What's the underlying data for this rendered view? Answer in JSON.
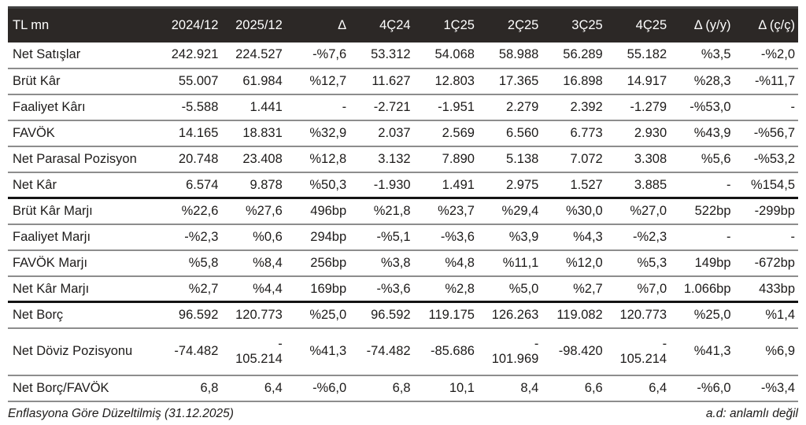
{
  "colors": {
    "header_bg": "#2c2826",
    "header_text": "#ffffff",
    "body_text": "#1d1b1a",
    "row_divider_gray": "#8d8d8d",
    "section_divider_black": "#141414",
    "top_rule": "#414141"
  },
  "table": {
    "columns": [
      "TL mn",
      "2024/12",
      "2025/12",
      "Δ",
      "4Ç24",
      "1Ç25",
      "2Ç25",
      "3Ç25",
      "4Ç25",
      "Δ (y/y)",
      "Δ (ç/ç)"
    ],
    "rows": [
      {
        "label": "Net Satışlar",
        "thick": false,
        "tall": false,
        "values": [
          "242.921",
          "224.527",
          "-%7,6",
          "53.312",
          "54.068",
          "58.988",
          "56.289",
          "55.182",
          "%3,5",
          "-%2,0"
        ]
      },
      {
        "label": "Brüt Kâr",
        "thick": false,
        "tall": false,
        "values": [
          "55.007",
          "61.984",
          "%12,7",
          "11.627",
          "12.803",
          "17.365",
          "16.898",
          "14.917",
          "%28,3",
          "-%11,7"
        ]
      },
      {
        "label": "Faaliyet Kârı",
        "thick": false,
        "tall": false,
        "values": [
          "-5.588",
          "1.441",
          "-",
          "-2.721",
          "-1.951",
          "2.279",
          "2.392",
          "-1.279",
          "-%53,0",
          "-"
        ]
      },
      {
        "label": "FAVÖK",
        "thick": false,
        "tall": false,
        "values": [
          "14.165",
          "18.831",
          "%32,9",
          "2.037",
          "2.569",
          "6.560",
          "6.773",
          "2.930",
          "%43,9",
          "-%56,7"
        ]
      },
      {
        "label": "Net Parasal Pozisyon",
        "thick": false,
        "tall": false,
        "values": [
          "20.748",
          "23.408",
          "%12,8",
          "3.132",
          "7.890",
          "5.138",
          "7.072",
          "3.308",
          "%5,6",
          "-%53,2"
        ]
      },
      {
        "label": "Net Kâr",
        "thick": true,
        "tall": false,
        "values": [
          "6.574",
          "9.878",
          "%50,3",
          "-1.930",
          "1.491",
          "2.975",
          "1.527",
          "3.885",
          "-",
          "%154,5"
        ]
      },
      {
        "label": "Brüt Kâr Marjı",
        "thick": false,
        "tall": false,
        "values": [
          "%22,6",
          "%27,6",
          "496bp",
          "%21,8",
          "%23,7",
          "%29,4",
          "%30,0",
          "%27,0",
          "522bp",
          "-299bp"
        ]
      },
      {
        "label": "Faaliyet Marjı",
        "thick": false,
        "tall": false,
        "values": [
          "-%2,3",
          "%0,6",
          "294bp",
          "-%5,1",
          "-%3,6",
          "%3,9",
          "%4,3",
          "-%2,3",
          "-",
          "-"
        ]
      },
      {
        "label": "FAVÖK Marjı",
        "thick": false,
        "tall": false,
        "values": [
          "%5,8",
          "%8,4",
          "256bp",
          "%3,8",
          "%4,8",
          "%11,1",
          "%12,0",
          "%5,3",
          "149bp",
          "-672bp"
        ]
      },
      {
        "label": "Net Kâr Marjı",
        "thick": true,
        "tall": false,
        "values": [
          "%2,7",
          "%4,4",
          "169bp",
          "-%3,6",
          "%2,8",
          "%5,0",
          "%2,7",
          "%7,0",
          "1.066bp",
          "433bp"
        ]
      },
      {
        "label": "Net Borç",
        "thick": false,
        "tall": false,
        "values": [
          "96.592",
          "120.773",
          "%25,0",
          "96.592",
          "119.175",
          "126.263",
          "119.082",
          "120.773",
          "%25,0",
          "%1,4"
        ]
      },
      {
        "label": "Net Döviz Pozisyonu",
        "thick": false,
        "tall": true,
        "values": [
          "-74.482",
          "-\n105.214",
          "%41,3",
          "-74.482",
          "-85.686",
          "-\n101.969",
          "-98.420",
          "-\n105.214",
          "%41,3",
          "%6,9"
        ]
      },
      {
        "label": "Net Borç/FAVÖK",
        "thick": false,
        "tall": false,
        "values": [
          "6,8",
          "6,4",
          "-%6,0",
          "6,8",
          "10,1",
          "8,4",
          "6,6",
          "6,4",
          "-%6,0",
          "-%3,4"
        ]
      }
    ],
    "footer_left": "Enflasyona Göre Düzeltilmiş (31.12.2025)",
    "footer_right": "a.d: anlamlı değil"
  }
}
